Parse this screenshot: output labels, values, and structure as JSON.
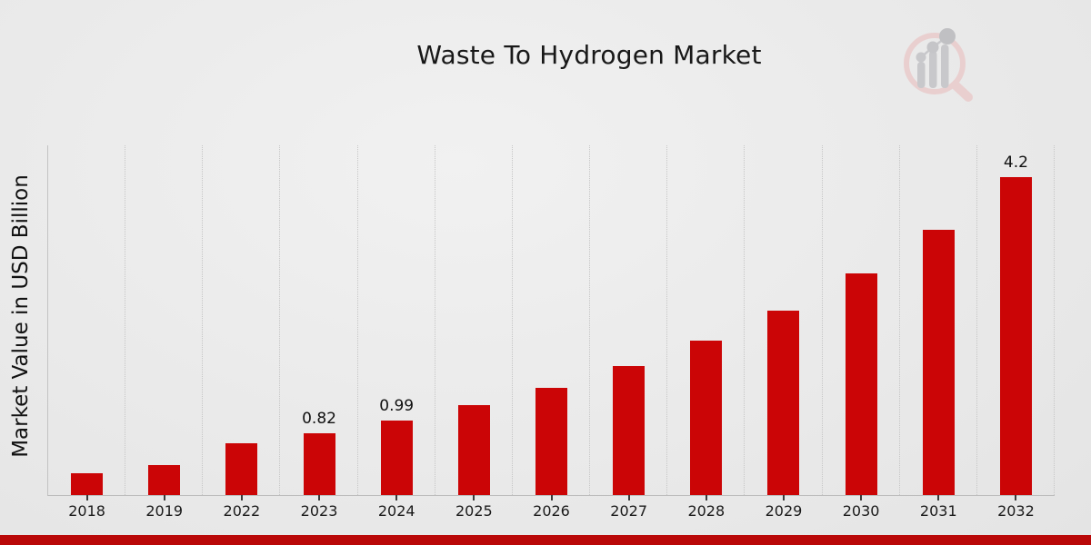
{
  "page": {
    "footer_band_color": "#b90808",
    "background": {
      "center": "#f1f1f1",
      "edge": "#e4e4e4"
    },
    "logo": {
      "icon": "magnifier-bar-chart-logo",
      "magnifier_color": "#e9cfcf",
      "bars_color": "#c8c8cb",
      "big_dot_color": "#c0c0c3"
    }
  },
  "chart_data": {
    "type": "bar",
    "title": "Waste To Hydrogen Market",
    "xlabel": "",
    "ylabel": "Market Value in USD Billion",
    "categories": [
      "2018",
      "2019",
      "2022",
      "2023",
      "2024",
      "2025",
      "2026",
      "2027",
      "2028",
      "2029",
      "2030",
      "2031",
      "2032"
    ],
    "values": [
      0.29,
      0.4,
      0.68,
      0.82,
      0.99,
      1.19,
      1.42,
      1.7,
      2.04,
      2.44,
      2.93,
      3.51,
      4.2
    ],
    "bar_labels": [
      "",
      "",
      "",
      "0.82",
      "0.99",
      "",
      "",
      "",
      "",
      "",
      "",
      "",
      "4.2"
    ],
    "ylim": [
      0,
      4.62
    ],
    "bar_color": "#cb0506",
    "grid": "vertical dotted",
    "legend": "none",
    "y_tick_labels": "none"
  }
}
